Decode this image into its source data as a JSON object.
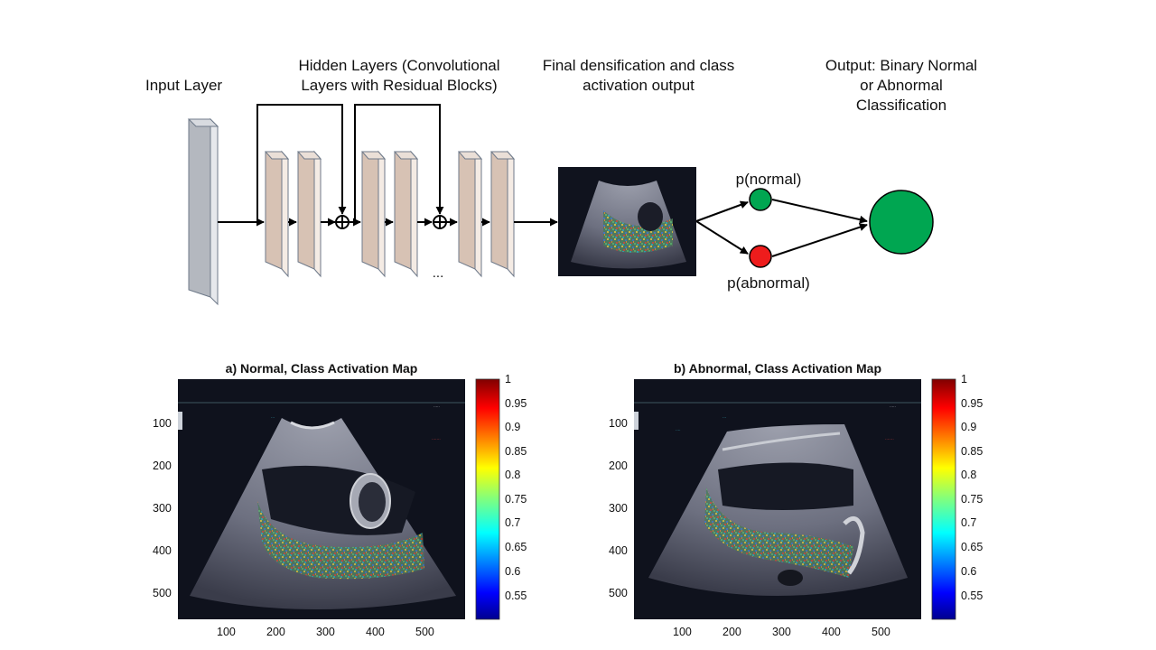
{
  "diagram": {
    "input_label": "Input Layer",
    "hidden_label_line1": "Hidden Layers (Convolutional",
    "hidden_label_line2": "Layers with Residual Blocks)",
    "final_label_line1": "Final densification and class",
    "final_label_line2": "activation output",
    "output_label_line1": "Output: Binary Normal",
    "output_label_line2": "or Abnormal",
    "output_label_line3": "Classification",
    "p_normal": "p(normal)",
    "p_abnormal": "p(abnormal)",
    "ellipsis": "...",
    "colors": {
      "input_layer": "#b4b8bf",
      "hidden_layer": "#d7c2b4",
      "normal_node": "#00a651",
      "abnormal_node": "#ee1c1c",
      "output_node": "#00a651"
    }
  },
  "panels": [
    {
      "title": "a) Normal, Class Activation Map",
      "x_ticks": [
        "100",
        "200",
        "300",
        "400",
        "500"
      ],
      "y_ticks": [
        "100",
        "200",
        "300",
        "400",
        "500"
      ],
      "colorbar_ticks": [
        "1",
        "0.95",
        "0.9",
        "0.85",
        "0.8",
        "0.75",
        "0.7",
        "0.65",
        "0.6",
        "0.55"
      ]
    },
    {
      "title": "b) Abnormal, Class Activation Map",
      "x_ticks": [
        "100",
        "200",
        "300",
        "400",
        "500"
      ],
      "y_ticks": [
        "100",
        "200",
        "300",
        "400",
        "500"
      ],
      "colorbar_ticks": [
        "1",
        "0.95",
        "0.9",
        "0.85",
        "0.8",
        "0.75",
        "0.7",
        "0.65",
        "0.6",
        "0.55"
      ]
    }
  ]
}
